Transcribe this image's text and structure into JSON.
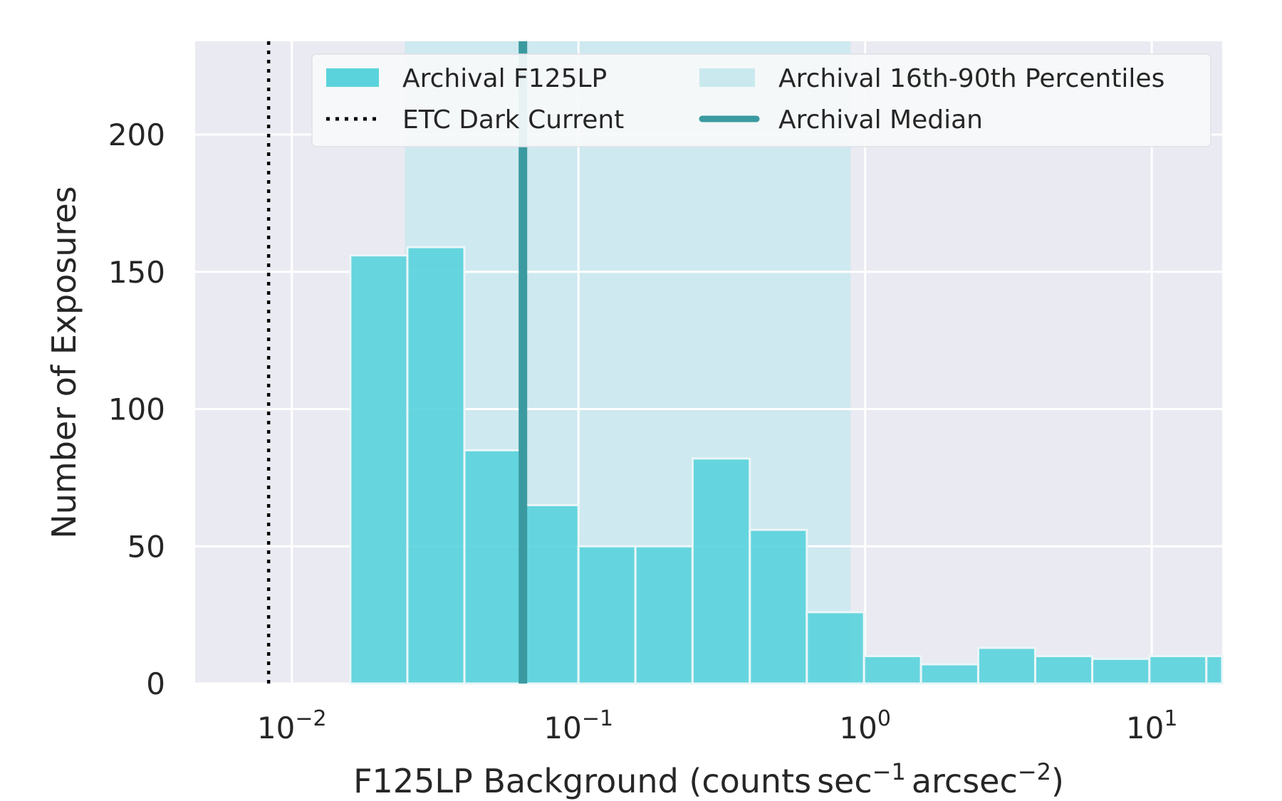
{
  "chart_data": {
    "type": "bar",
    "xlabel": {
      "prefix": "F125LP Background (counts",
      "unit1": "sec",
      "sup1": "−1",
      "unit2": "arcsec",
      "sup2": "−2",
      "suffix": ")"
    },
    "ylabel": "Number of Exposures",
    "xscale": "log",
    "xlim": [
      0.0046,
      17.6
    ],
    "ylim": [
      0,
      234
    ],
    "grid": true,
    "background_color": "#eaeaf2",
    "x_ticks": [
      {
        "value": 0.01,
        "base": "10",
        "exp": "−2"
      },
      {
        "value": 0.1,
        "base": "10",
        "exp": "−1"
      },
      {
        "value": 1,
        "base": "10",
        "exp": "0"
      },
      {
        "value": 10,
        "base": "10",
        "exp": "1"
      }
    ],
    "y_ticks": [
      {
        "value": 0,
        "label": "0"
      },
      {
        "value": 50,
        "label": "50"
      },
      {
        "value": 100,
        "label": "100"
      },
      {
        "value": 150,
        "label": "150"
      },
      {
        "value": 200,
        "label": "200"
      }
    ],
    "histogram": {
      "name": "Archival F125LP",
      "color": "#5bd3dc",
      "bins": [
        {
          "x0": 0.016,
          "x1": 0.0253,
          "count": 156
        },
        {
          "x0": 0.0253,
          "x1": 0.04,
          "count": 159
        },
        {
          "x0": 0.04,
          "x1": 0.0633,
          "count": 85
        },
        {
          "x0": 0.0633,
          "x1": 0.1,
          "count": 65
        },
        {
          "x0": 0.1,
          "x1": 0.158,
          "count": 50
        },
        {
          "x0": 0.158,
          "x1": 0.25,
          "count": 50
        },
        {
          "x0": 0.25,
          "x1": 0.396,
          "count": 82
        },
        {
          "x0": 0.396,
          "x1": 0.626,
          "count": 56
        },
        {
          "x0": 0.626,
          "x1": 0.991,
          "count": 26
        },
        {
          "x0": 0.991,
          "x1": 1.566,
          "count": 10
        },
        {
          "x0": 1.566,
          "x1": 2.48,
          "count": 7
        },
        {
          "x0": 2.48,
          "x1": 3.92,
          "count": 13
        },
        {
          "x0": 3.92,
          "x1": 6.2,
          "count": 10
        },
        {
          "x0": 6.2,
          "x1": 9.81,
          "count": 9
        },
        {
          "x0": 9.81,
          "x1": 15.5,
          "count": 10
        },
        {
          "x0": 15.5,
          "x1": 24.5,
          "count": 10
        }
      ]
    },
    "percentile_band": {
      "name": "Archival 16th-90th Percentiles",
      "x0": 0.0248,
      "x1": 0.89,
      "color": "#c9e9ee"
    },
    "median": {
      "name": "Archival Median",
      "x": 0.064,
      "color": "#3a9aa0"
    },
    "dark_current": {
      "name": "ETC Dark Current",
      "x": 0.0083,
      "color": "#000000"
    },
    "legend": {
      "placement": "top-right",
      "entries": [
        {
          "label": "Archival F125LP",
          "kind": "patch",
          "color": "#5bd3dc"
        },
        {
          "label": "Archival 16th-90th Percentiles",
          "kind": "band",
          "color": "#c9e9ee"
        },
        {
          "label": "ETC Dark Current",
          "kind": "dotted-line",
          "color": "#000000"
        },
        {
          "label": "Archival Median",
          "kind": "solid-line",
          "color": "#3a9aa0"
        }
      ]
    }
  }
}
